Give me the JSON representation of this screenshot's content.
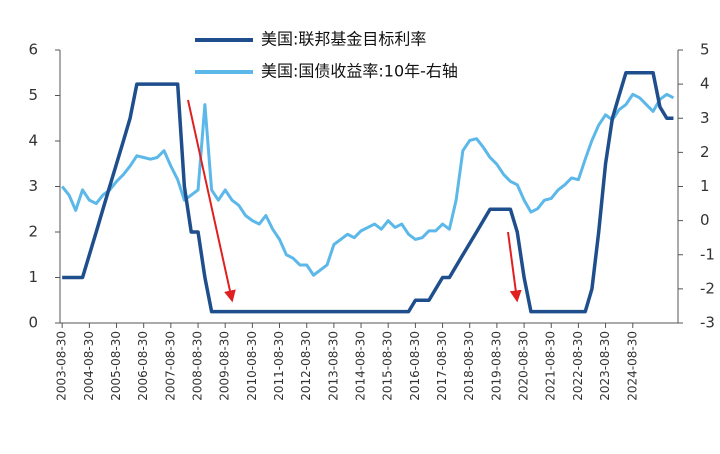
{
  "chart_data": {
    "type": "line",
    "legend_position": "top",
    "x": [
      "2003-08-30",
      "2003-11-30",
      "2004-02-28",
      "2004-05-30",
      "2004-08-30",
      "2004-11-30",
      "2005-02-28",
      "2005-05-30",
      "2005-08-30",
      "2005-11-30",
      "2006-02-28",
      "2006-05-30",
      "2006-08-30",
      "2006-11-30",
      "2007-02-28",
      "2007-05-30",
      "2007-08-30",
      "2007-11-30",
      "2008-02-28",
      "2008-05-30",
      "2008-08-30",
      "2008-11-30",
      "2009-02-28",
      "2009-05-30",
      "2009-08-30",
      "2009-11-30",
      "2010-02-28",
      "2010-05-30",
      "2010-08-30",
      "2010-11-30",
      "2011-02-28",
      "2011-05-30",
      "2011-08-30",
      "2011-11-30",
      "2012-02-28",
      "2012-05-30",
      "2012-08-30",
      "2012-11-30",
      "2013-02-28",
      "2013-05-30",
      "2013-08-30",
      "2013-11-30",
      "2014-02-28",
      "2014-05-30",
      "2014-08-30",
      "2014-11-30",
      "2015-02-28",
      "2015-05-30",
      "2015-08-30",
      "2015-11-30",
      "2016-02-28",
      "2016-05-30",
      "2016-08-30",
      "2016-11-30",
      "2017-02-28",
      "2017-05-30",
      "2017-08-30",
      "2017-11-30",
      "2018-02-28",
      "2018-05-30",
      "2018-08-30",
      "2018-11-30",
      "2019-02-28",
      "2019-05-30",
      "2019-08-30",
      "2019-11-30",
      "2020-02-28",
      "2020-05-30",
      "2020-08-30",
      "2020-11-30",
      "2021-02-28",
      "2021-05-30",
      "2021-08-30",
      "2021-11-30",
      "2022-02-28",
      "2022-05-30",
      "2022-08-30",
      "2022-11-30",
      "2023-02-28",
      "2023-05-30",
      "2023-08-30",
      "2023-11-30",
      "2024-02-28",
      "2024-05-30",
      "2024-08-30",
      "2024-11-30",
      "2025-02-28",
      "2025-05-30",
      "2025-08-30",
      "2025-11-30",
      "2026-02-28"
    ],
    "xlim": [
      "2003-08-01",
      "2026-04-30"
    ],
    "xticks": [
      "2003-08-30",
      "2004-08-30",
      "2005-08-30",
      "2006-08-30",
      "2007-08-30",
      "2008-08-30",
      "2009-08-30",
      "2010-08-30",
      "2011-08-30",
      "2012-08-30",
      "2013-08-30",
      "2014-08-30",
      "2015-08-30",
      "2016-08-30",
      "2017-08-30",
      "2018-08-30",
      "2019-08-30",
      "2020-08-30",
      "2021-08-30",
      "2022-08-30",
      "2023-08-30",
      "2024-08-30"
    ],
    "ylim": [
      0,
      6
    ],
    "yticks": [
      0,
      1,
      2,
      3,
      4,
      5,
      6
    ],
    "y2lim": [
      -3,
      5
    ],
    "y2ticks": [
      -3,
      -2,
      -1,
      0,
      1,
      2,
      3,
      4,
      5
    ],
    "series": [
      {
        "name": "美国:联邦基金目标利率",
        "color": "#1f4e8c",
        "values": [
          1,
          1,
          1,
          1,
          1.5,
          2,
          2.5,
          3,
          3.5,
          4,
          4.5,
          5.25,
          5.25,
          5.25,
          5.25,
          5.25,
          5.25,
          5.25,
          3,
          2,
          2,
          1,
          0.25,
          0.25,
          0.25,
          0.25,
          0.25,
          0.25,
          0.25,
          0.25,
          0.25,
          0.25,
          0.25,
          0.25,
          0.25,
          0.25,
          0.25,
          0.25,
          0.25,
          0.25,
          0.25,
          0.25,
          0.25,
          0.25,
          0.25,
          0.25,
          0.25,
          0.25,
          0.25,
          0.25,
          0.25,
          0.25,
          0.5,
          0.5,
          0.5,
          0.75,
          1,
          1,
          1.25,
          1.5,
          1.75,
          2,
          2.25,
          2.5,
          2.5,
          2.5,
          2.5,
          2,
          1,
          0.25,
          0.25,
          0.25,
          0.25,
          0.25,
          0.25,
          0.25,
          0.25,
          0.25,
          0.75,
          2,
          3.5,
          4.5,
          5,
          5.5,
          5.5,
          5.5,
          5.5,
          5.5,
          4.75,
          4.5,
          4.5
        ]
      },
      {
        "name": "美国:国债收益率:10年-右轴",
        "color": "#5bb8e8",
        "axis": "y2",
        "values": [
          1,
          0.75,
          0.3,
          0.9,
          0.6,
          0.5,
          0.75,
          0.9,
          1.15,
          1.35,
          1.6,
          1.9,
          1.85,
          1.8,
          1.85,
          2.05,
          1.6,
          1.2,
          0.6,
          0.75,
          0.9,
          3.4,
          0.9,
          0.6,
          0.9,
          0.6,
          0.45,
          0.15,
          0,
          -0.1,
          0.15,
          -0.25,
          -0.55,
          -1,
          -1.1,
          -1.3,
          -1.3,
          -1.6,
          -1.45,
          -1.3,
          -0.7,
          -0.55,
          -0.4,
          -0.5,
          -0.3,
          -0.2,
          -0.1,
          -0.25,
          0,
          -0.2,
          -0.1,
          -0.4,
          -0.55,
          -0.5,
          -0.3,
          -0.3,
          -0.1,
          -0.25,
          0.6,
          2.05,
          2.35,
          2.4,
          2.15,
          1.85,
          1.65,
          1.35,
          1.15,
          1.05,
          0.6,
          0.25,
          0.35,
          0.6,
          0.65,
          0.9,
          1.05,
          1.25,
          1.2,
          1.8,
          2.35,
          2.8,
          3.1,
          2.95,
          3.25,
          3.4,
          3.7,
          3.6,
          3.4,
          3.2,
          3.55,
          3.7,
          3.6
        ]
      }
    ]
  }
}
